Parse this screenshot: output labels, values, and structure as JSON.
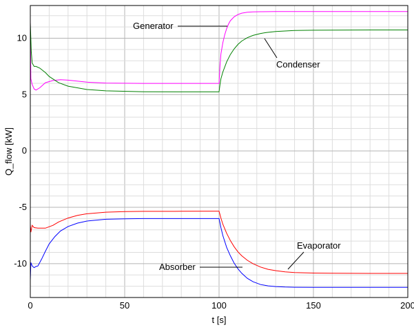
{
  "chart_data": {
    "type": "line",
    "title": "",
    "xlabel": "t [s]",
    "ylabel": "Q_flow [kW]",
    "xlim": [
      0,
      200
    ],
    "ylim": [
      -13,
      12.9
    ],
    "grid": true,
    "x_ticks": [
      0,
      50,
      100,
      150,
      200
    ],
    "x_tick_labels": [
      "0",
      "50",
      "100",
      "150",
      "200"
    ],
    "y_ticks": [
      -10,
      -5,
      0,
      5,
      10
    ],
    "y_tick_labels": [
      "-10",
      "-5",
      "0",
      "5",
      "10"
    ],
    "series": [
      {
        "name": "Generator",
        "color": "#ff00ff",
        "x": [
          0,
          0.3,
          1,
          2,
          3,
          5,
          8,
          12,
          16,
          20,
          30,
          40,
          60,
          80,
          99.8,
          100,
          100.5,
          101,
          102,
          103,
          104,
          105,
          106,
          108,
          110,
          112,
          115,
          118,
          122,
          130,
          140,
          160,
          180,
          200
        ],
        "y": [
          11.6,
          6.4,
          5.9,
          5.5,
          5.4,
          5.6,
          6.05,
          6.25,
          6.32,
          6.28,
          6.1,
          6.02,
          5.99,
          5.99,
          5.99,
          5.99,
          7.6,
          8.6,
          9.6,
          10.3,
          10.85,
          11.25,
          11.55,
          11.9,
          12.1,
          12.22,
          12.3,
          12.33,
          12.35,
          12.36,
          12.36,
          12.36,
          12.36,
          12.36
        ]
      },
      {
        "name": "Condenser",
        "color": "#008000",
        "x": [
          0,
          0.5,
          1,
          2,
          3,
          5,
          8,
          10,
          15,
          20,
          30,
          40,
          60,
          80,
          99.8,
          100,
          100.5,
          101,
          102,
          104,
          106,
          108,
          110,
          112,
          115,
          118,
          122,
          125,
          130,
          140,
          150,
          160,
          180,
          200
        ],
        "y": [
          11.4,
          8.8,
          7.8,
          7.5,
          7.5,
          7.35,
          6.95,
          6.6,
          6.05,
          5.75,
          5.45,
          5.33,
          5.25,
          5.24,
          5.24,
          5.24,
          5.9,
          6.4,
          7.0,
          7.9,
          8.55,
          9.05,
          9.45,
          9.75,
          10.05,
          10.25,
          10.42,
          10.5,
          10.6,
          10.68,
          10.71,
          10.72,
          10.73,
          10.73
        ]
      },
      {
        "name": "Evaporator",
        "color": "#ff0000",
        "x": [
          0,
          0.3,
          1,
          2,
          4,
          8,
          12,
          15,
          20,
          25,
          30,
          40,
          50,
          60,
          80,
          99.8,
          100,
          100.5,
          101,
          102,
          104,
          106,
          108,
          110,
          112,
          115,
          118,
          122,
          126,
          130,
          135,
          140,
          150,
          160,
          180,
          200
        ],
        "y": [
          -6.5,
          -7.2,
          -6.6,
          -6.8,
          -6.85,
          -6.85,
          -6.6,
          -6.3,
          -5.95,
          -5.72,
          -5.57,
          -5.43,
          -5.38,
          -5.36,
          -5.35,
          -5.34,
          -5.34,
          -5.65,
          -5.95,
          -6.5,
          -7.3,
          -7.95,
          -8.5,
          -8.95,
          -9.3,
          -9.7,
          -10.0,
          -10.3,
          -10.5,
          -10.62,
          -10.72,
          -10.78,
          -10.83,
          -10.85,
          -10.86,
          -10.86
        ]
      },
      {
        "name": "Absorber",
        "color": "#0000ff",
        "x": [
          0,
          0.3,
          1,
          2,
          3,
          4,
          5,
          6,
          8,
          10,
          13,
          16,
          20,
          25,
          30,
          40,
          50,
          60,
          80,
          99.8,
          100,
          100.5,
          101,
          102,
          104,
          106,
          108,
          110,
          112,
          115,
          118,
          122,
          126,
          130,
          135,
          140,
          150,
          160,
          180,
          200
        ],
        "y": [
          -11.5,
          -9.9,
          -10.2,
          -10.35,
          -10.25,
          -10.2,
          -9.9,
          -9.6,
          -8.9,
          -8.25,
          -7.6,
          -7.1,
          -6.7,
          -6.4,
          -6.22,
          -6.06,
          -6.02,
          -6.0,
          -6.0,
          -6.0,
          -6.0,
          -6.4,
          -6.8,
          -7.5,
          -8.55,
          -9.3,
          -9.95,
          -10.45,
          -10.85,
          -11.3,
          -11.6,
          -11.85,
          -11.97,
          -12.03,
          -12.07,
          -12.09,
          -12.1,
          -12.1,
          -12.1,
          -12.1
        ]
      }
    ],
    "annotations": [
      {
        "text": "Generator",
        "series": "Generator"
      },
      {
        "text": "Condenser",
        "series": "Condenser"
      },
      {
        "text": "Evaporator",
        "series": "Evaporator"
      },
      {
        "text": "Absorber",
        "series": "Absorber"
      }
    ]
  }
}
